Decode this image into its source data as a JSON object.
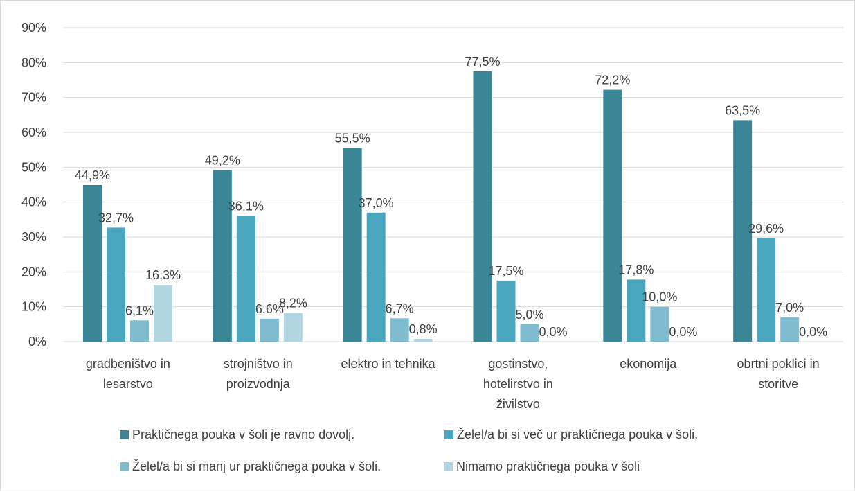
{
  "chart_data": {
    "type": "bar",
    "categories": [
      [
        "gradbeništvo in",
        "lesarstvo"
      ],
      [
        "strojništvo in",
        "proizvodnja"
      ],
      [
        "elektro in tehnika"
      ],
      [
        "gostinstvo,",
        "hotelirstvo in",
        "živilstvo"
      ],
      [
        "ekonomija"
      ],
      [
        "obrtni poklici in",
        "storitve"
      ]
    ],
    "series": [
      {
        "name": "Praktičnega pouka v šoli je ravno dovolj.",
        "color": "#3a8596",
        "values": [
          44.9,
          49.2,
          55.5,
          77.5,
          72.2,
          63.5
        ],
        "labels": [
          "44,9%",
          "49,2%",
          "55,5%",
          "77,5%",
          "72,2%",
          "63,5%"
        ]
      },
      {
        "name": "Želel/a bi si več ur praktičnega pouka v šoli.",
        "color": "#4aa6bc",
        "values": [
          32.7,
          36.1,
          37.0,
          17.5,
          17.8,
          29.6
        ],
        "labels": [
          "32,7%",
          "36,1%",
          "37,0%",
          "17,5%",
          "17,8%",
          "29,6%"
        ]
      },
      {
        "name": "Želel/a bi si manj ur praktičnega pouka v šoli.",
        "color": "#7fbccf",
        "values": [
          6.1,
          6.6,
          6.7,
          5.0,
          10.0,
          7.0
        ],
        "labels": [
          "6,1%",
          "6,6%",
          "6,7%",
          "5,0%",
          "10,0%",
          "7,0%"
        ]
      },
      {
        "name": "Nimamo praktičnega pouka v šoli",
        "color": "#b1d6e1",
        "values": [
          16.3,
          8.2,
          0.8,
          0.0,
          0.0,
          0.0
        ],
        "labels": [
          "16,3%",
          "8,2%",
          "0,8%",
          "0,0%",
          "0,0%",
          "0,0%"
        ]
      }
    ],
    "y_ticks": [
      "0%",
      "10%",
      "20%",
      "30%",
      "40%",
      "50%",
      "60%",
      "70%",
      "80%",
      "90%"
    ],
    "ylim": [
      0,
      90
    ],
    "grid": true,
    "legend_position": "bottom"
  }
}
